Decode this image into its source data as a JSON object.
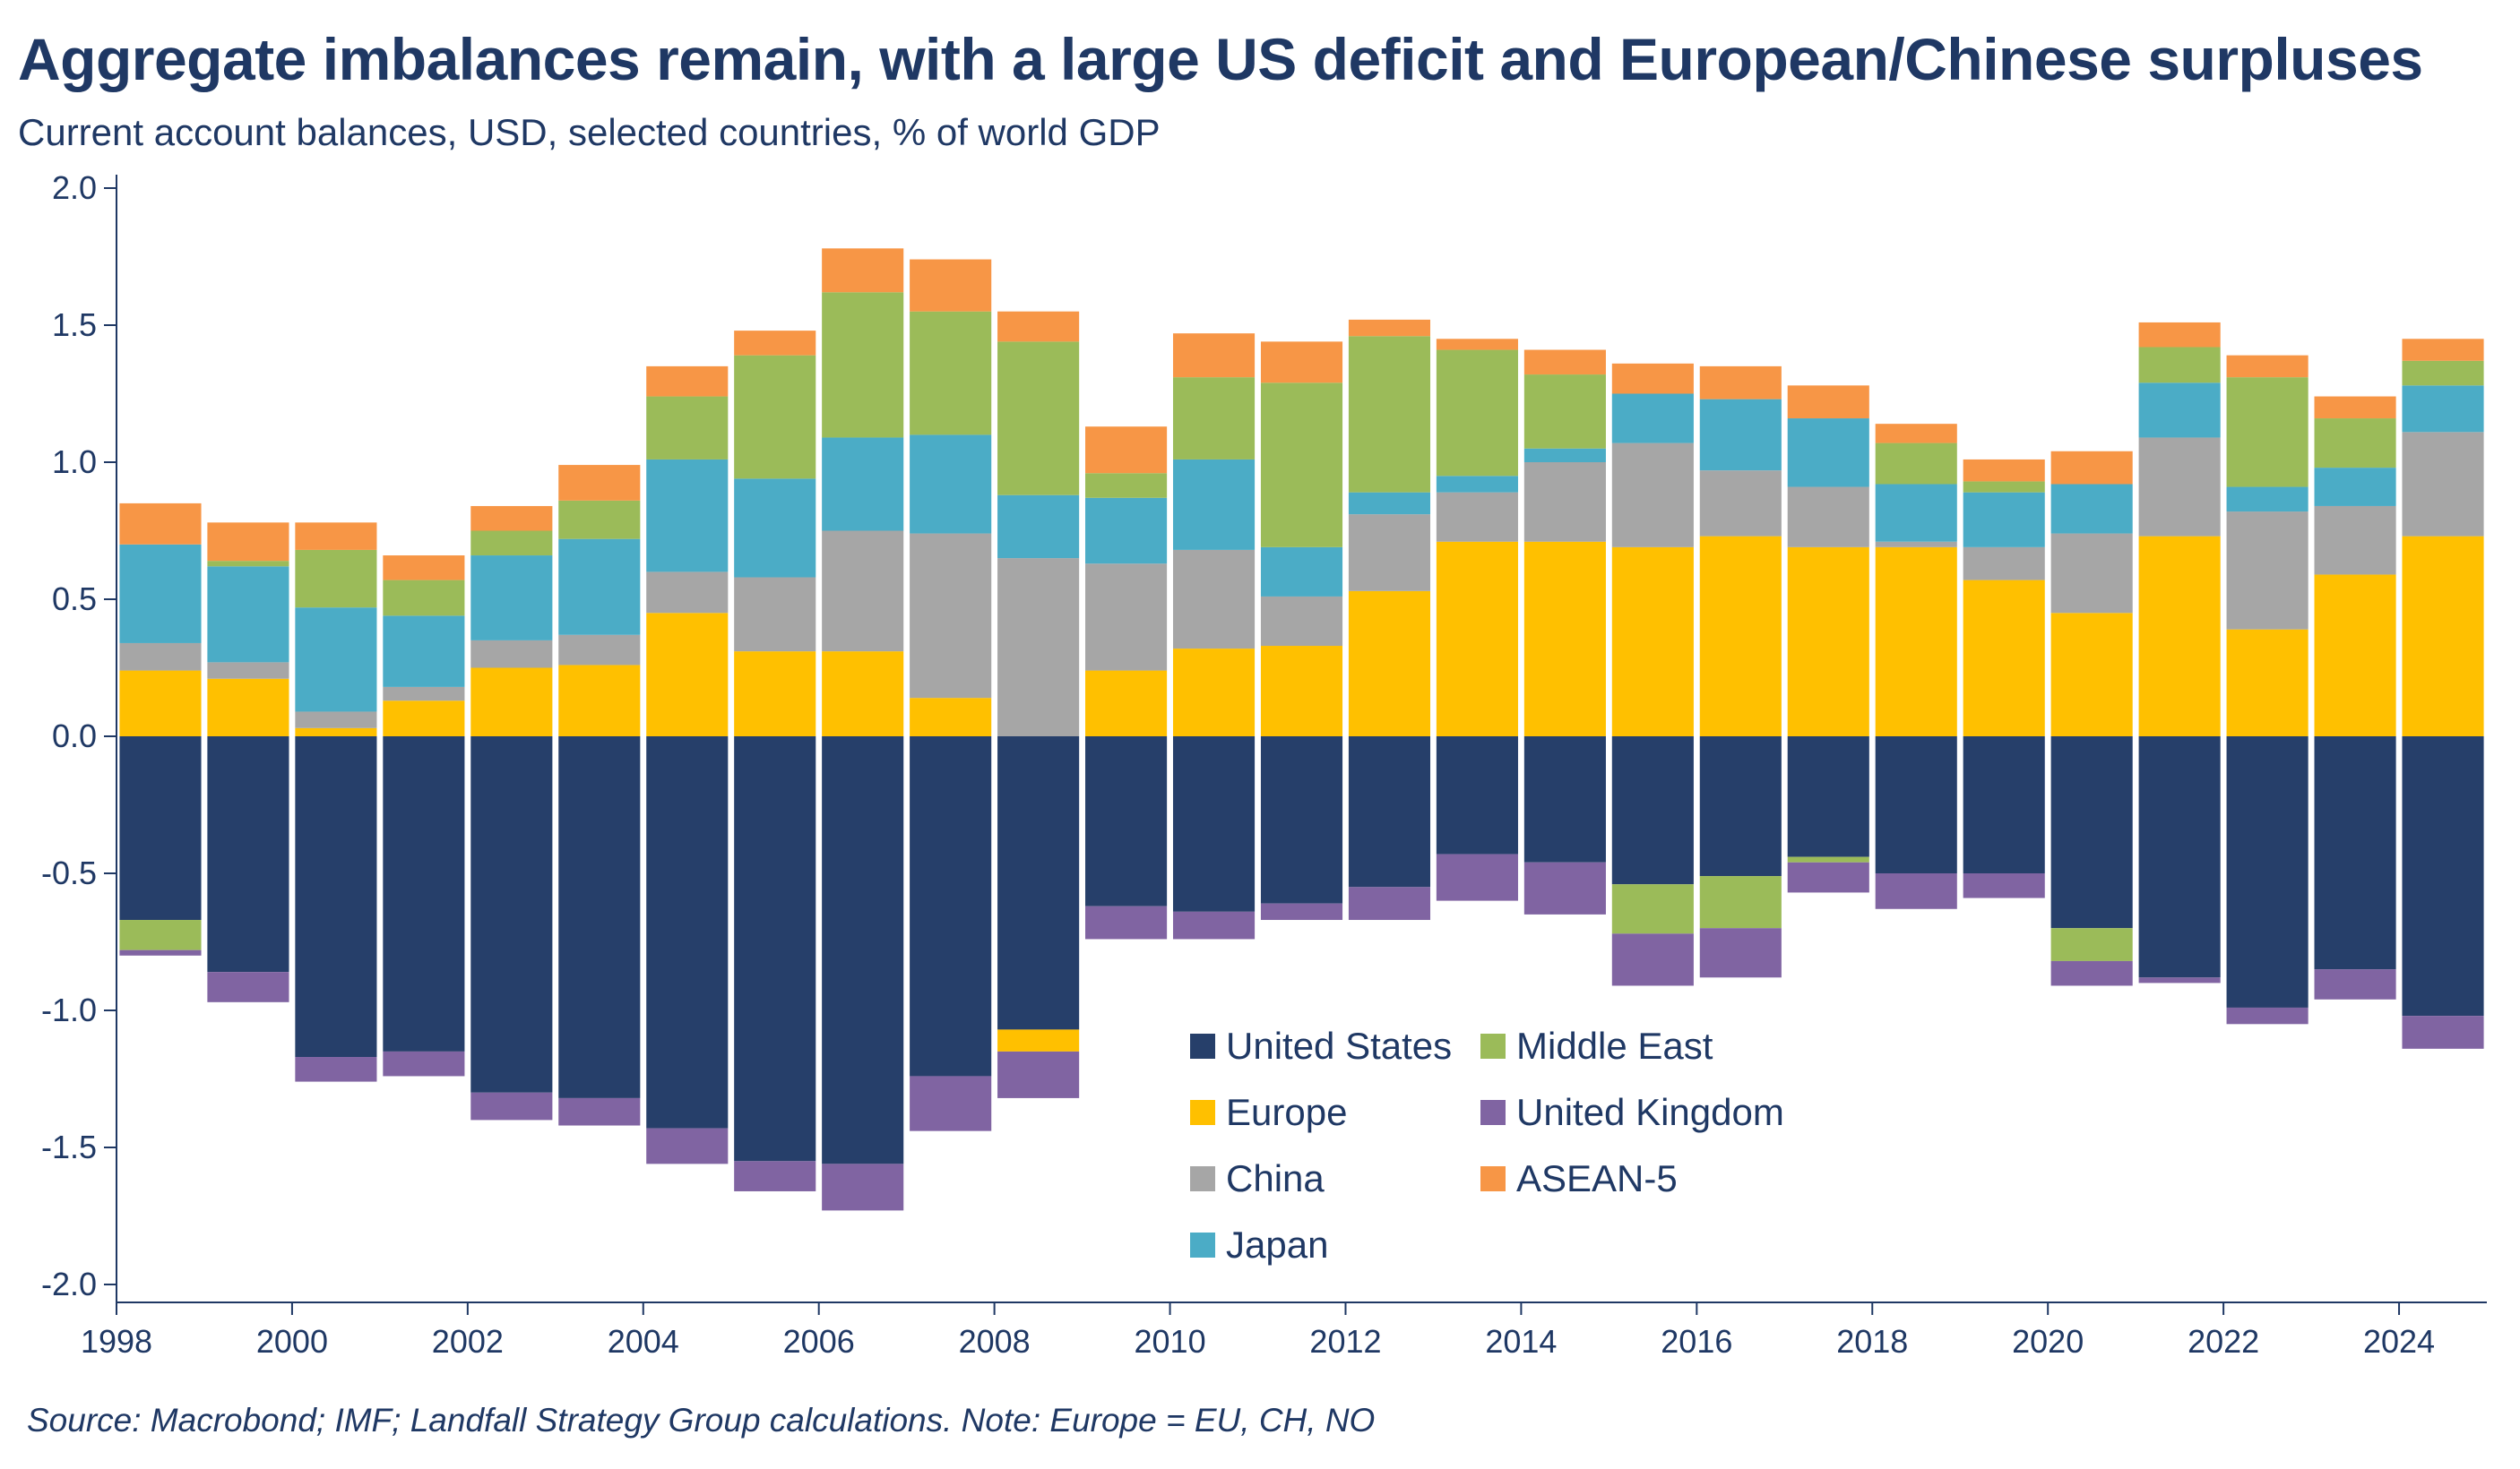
{
  "title": "Aggregate imbalances remain, with a large US deficit and European/Chinese surpluses",
  "subtitle": "Current account balances, USD, selected countries, % of world GDP",
  "source": "Source: Macrobond; IMF; Landfall Strategy Group calculations. Note: Europe = EU, CH, NO",
  "chart_data": {
    "type": "bar",
    "stacked": true,
    "title": "Aggregate imbalances remain, with a large US deficit and European/Chinese surpluses",
    "subtitle": "Current account balances, USD, selected countries, % of world GDP",
    "categories": [
      1998,
      1999,
      2000,
      2001,
      2002,
      2003,
      2004,
      2005,
      2006,
      2007,
      2008,
      2009,
      2010,
      2011,
      2012,
      2013,
      2014,
      2015,
      2016,
      2017,
      2018,
      2019,
      2020,
      2021,
      2022,
      2023,
      2024
    ],
    "ylim": [
      -2.0,
      2.0
    ],
    "yticks": [
      "2.0",
      "1.5",
      "1.0",
      "0.5",
      "0.0",
      "-0.5",
      "-1.0",
      "-1.5",
      "-2.0"
    ],
    "xticks": [
      "1998",
      "2000",
      "2002",
      "2004",
      "2006",
      "2008",
      "2010",
      "2012",
      "2014",
      "2016",
      "2018",
      "2020",
      "2022",
      "2024"
    ],
    "grid": false,
    "legend_position": "bottom-center",
    "series": [
      {
        "name": "United States",
        "color": "#263f6a",
        "values": [
          -0.67,
          -0.86,
          -1.17,
          -1.15,
          -1.3,
          -1.32,
          -1.43,
          -1.55,
          -1.56,
          -1.24,
          -1.07,
          -0.62,
          -0.64,
          -0.61,
          -0.55,
          -0.43,
          -0.46,
          -0.54,
          -0.51,
          -0.44,
          -0.5,
          -0.5,
          -0.7,
          -0.88,
          -0.99,
          -0.85,
          -1.02
        ]
      },
      {
        "name": "Europe",
        "color": "#ffc000",
        "values": [
          0.24,
          0.21,
          0.03,
          0.13,
          0.25,
          0.26,
          0.45,
          0.31,
          0.31,
          0.14,
          -0.08,
          0.24,
          0.32,
          0.33,
          0.53,
          0.71,
          0.71,
          0.69,
          0.73,
          0.69,
          0.69,
          0.57,
          0.45,
          0.73,
          0.39,
          0.59,
          0.73
        ]
      },
      {
        "name": "China",
        "color": "#a6a6a6",
        "values": [
          0.1,
          0.06,
          0.06,
          0.05,
          0.1,
          0.11,
          0.15,
          0.27,
          0.44,
          0.6,
          0.65,
          0.39,
          0.36,
          0.18,
          0.28,
          0.18,
          0.29,
          0.38,
          0.24,
          0.22,
          0.02,
          0.12,
          0.29,
          0.36,
          0.43,
          0.25,
          0.38
        ]
      },
      {
        "name": "Japan",
        "color": "#4bacc6",
        "values": [
          0.36,
          0.35,
          0.38,
          0.26,
          0.31,
          0.35,
          0.41,
          0.36,
          0.34,
          0.36,
          0.23,
          0.24,
          0.33,
          0.18,
          0.08,
          0.06,
          0.05,
          0.18,
          0.26,
          0.25,
          0.21,
          0.2,
          0.18,
          0.2,
          0.09,
          0.14,
          0.17
        ]
      },
      {
        "name": "Middle East",
        "color": "#9bbb59",
        "values": [
          -0.11,
          0.02,
          0.21,
          0.13,
          0.09,
          0.14,
          0.23,
          0.45,
          0.53,
          0.45,
          0.56,
          0.09,
          0.3,
          0.6,
          0.57,
          0.46,
          0.27,
          -0.18,
          -0.19,
          -0.02,
          0.15,
          0.04,
          -0.12,
          0.13,
          0.4,
          0.18,
          0.09
        ]
      },
      {
        "name": "United Kingdom",
        "color": "#8064a2",
        "values": [
          -0.02,
          -0.11,
          -0.09,
          -0.09,
          -0.1,
          -0.1,
          -0.13,
          -0.11,
          -0.17,
          -0.2,
          -0.17,
          -0.12,
          -0.1,
          -0.06,
          -0.12,
          -0.17,
          -0.19,
          -0.19,
          -0.18,
          -0.11,
          -0.13,
          -0.09,
          -0.09,
          -0.02,
          -0.06,
          -0.11,
          -0.12
        ]
      },
      {
        "name": "ASEAN-5",
        "color": "#f79646",
        "values": [
          0.15,
          0.14,
          0.1,
          0.09,
          0.09,
          0.13,
          0.11,
          0.09,
          0.16,
          0.19,
          0.11,
          0.17,
          0.16,
          0.15,
          0.06,
          0.04,
          0.09,
          0.11,
          0.12,
          0.12,
          0.07,
          0.08,
          0.12,
          0.09,
          0.08,
          0.08,
          0.08
        ]
      }
    ]
  }
}
